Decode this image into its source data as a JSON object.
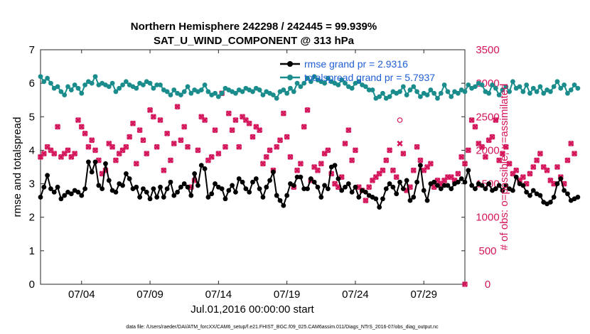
{
  "colors": {
    "rmse": "#000000",
    "spread": "#1a8c8c",
    "obs": "#d4145a",
    "right_axis": "#d4145a",
    "legend_text": "#1f5fd6"
  },
  "chart_data": {
    "type": "line",
    "title_line1": "Northern Hemisphere 242298 / 242445 = 99.939%",
    "title_line2": "SAT_U_WIND_COMPONENT @ 313 hPa",
    "xlabel": "Jul.01,2016 00:00:00 start",
    "ylabel_left": "rmse and totalspread",
    "ylabel_right": "# of obs: o=possible; ×=assimilated",
    "xlim": [
      1,
      32
    ],
    "ylim_left": [
      0,
      7
    ],
    "ylim_right": [
      0,
      3500
    ],
    "xticks": [
      {
        "value": 4,
        "label": "07/04"
      },
      {
        "value": 9,
        "label": "07/09"
      },
      {
        "value": 14,
        "label": "07/14"
      },
      {
        "value": 19,
        "label": "07/19"
      },
      {
        "value": 24,
        "label": "07/24"
      },
      {
        "value": 29,
        "label": "07/29"
      }
    ],
    "yticks_left": [
      "0",
      "1",
      "2",
      "3",
      "4",
      "5",
      "6",
      "7"
    ],
    "yticks_right": [
      "0",
      "500",
      "1000",
      "1500",
      "2000",
      "2500",
      "3000",
      "3500"
    ],
    "legend": {
      "rmse": "rmse grand pr = 2.9316",
      "spread": "totalspread grand pr = 5.7937"
    },
    "footer": "data file: /Users/raeder/DAI/ATM_forcXX/CAM6_setup/f.e21.FHIST_BGC.f09_025.CAM6assim.011/Diags_NTrS_2016-07/obs_diag_output.nc",
    "x_start": 1.0,
    "x_step": 0.25,
    "series": [
      {
        "name": "rmse",
        "axis": "left",
        "values": [
          2.6,
          2.9,
          3.25,
          2.85,
          2.75,
          2.9,
          2.55,
          2.65,
          2.75,
          2.7,
          2.8,
          2.75,
          2.65,
          2.85,
          3.65,
          3.35,
          3.65,
          2.95,
          2.85,
          3.6,
          3.1,
          2.8,
          2.75,
          3.0,
          2.95,
          3.3,
          3.15,
          2.85,
          2.9,
          2.6,
          2.85,
          2.75,
          2.55,
          2.85,
          2.6,
          2.9,
          2.6,
          2.85,
          3.05,
          2.65,
          2.75,
          2.9,
          3.0,
          2.9,
          2.65,
          3.3,
          2.95,
          3.55,
          3.45,
          2.6,
          2.7,
          3.0,
          2.9,
          2.85,
          2.55,
          2.8,
          2.95,
          2.75,
          3.15,
          3.05,
          2.85,
          2.75,
          3.05,
          3.15,
          2.85,
          2.6,
          2.9,
          3.1,
          3.35,
          2.65,
          2.5,
          2.35,
          2.65,
          3.0,
          2.95,
          3.2,
          3.2,
          2.85,
          2.85,
          3.15,
          3.05,
          2.9,
          2.6,
          2.95,
          2.85,
          3.5,
          3.55,
          3.15,
          2.8,
          2.9,
          3.0,
          2.75,
          2.9,
          2.6,
          2.8,
          2.75,
          2.65,
          2.6,
          2.55,
          2.3,
          2.55,
          2.85,
          3.0,
          2.9,
          2.7,
          3.05,
          2.85,
          3.1,
          2.5,
          2.6,
          3.05,
          3.55,
          2.8,
          2.5,
          3.0,
          3.05,
          2.95,
          2.85,
          2.95,
          2.95,
          2.85,
          3.0,
          3.05,
          3.15,
          3.05,
          3.4,
          2.95,
          2.85,
          3.0,
          2.95,
          2.85,
          3.0,
          2.8,
          2.85,
          2.95,
          2.8,
          2.95,
          2.85,
          2.8,
          3.2,
          3.0,
          2.95,
          2.75,
          2.65,
          2.8,
          2.7,
          2.65,
          2.45,
          2.4,
          2.45,
          2.6,
          3.0,
          3.15,
          2.8,
          2.7,
          2.5,
          2.55,
          2.6
        ]
      },
      {
        "name": "totalspread",
        "axis": "left",
        "values": [
          6.2,
          6.05,
          6.15,
          6.0,
          5.85,
          5.9,
          5.75,
          5.65,
          5.9,
          5.8,
          5.95,
          5.85,
          5.7,
          5.95,
          6.05,
          6.0,
          6.2,
          5.95,
          6.0,
          5.95,
          5.9,
          6.0,
          5.75,
          5.85,
          5.95,
          6.05,
          5.95,
          5.9,
          5.85,
          6.0,
          5.95,
          6.05,
          6.0,
          5.85,
          5.95,
          5.95,
          5.8,
          5.75,
          5.65,
          5.8,
          5.7,
          5.65,
          5.75,
          5.9,
          5.7,
          5.8,
          5.75,
          5.8,
          5.95,
          5.75,
          5.65,
          5.7,
          5.6,
          5.7,
          5.85,
          5.8,
          5.75,
          5.7,
          5.8,
          5.75,
          5.85,
          5.8,
          5.75,
          5.85,
          5.8,
          5.65,
          5.75,
          5.7,
          5.65,
          5.55,
          5.75,
          5.8,
          5.7,
          5.85,
          5.75,
          6.0,
          5.9,
          6.0,
          6.15,
          6.05,
          6.2,
          6.1,
          6.05,
          6.0,
          6.15,
          6.05,
          6.0,
          5.95,
          6.1,
          6.0,
          5.9,
          5.85,
          6.0,
          6.05,
          5.95,
          5.9,
          5.8,
          5.8,
          5.55,
          5.6,
          5.7,
          5.55,
          5.6,
          5.75,
          5.7,
          5.75,
          5.9,
          5.65,
          5.8,
          5.9,
          5.75,
          5.6,
          5.7,
          5.65,
          5.8,
          5.7,
          5.55,
          5.7,
          5.95,
          5.75,
          5.6,
          5.75,
          5.7,
          5.8,
          5.75,
          5.95,
          5.85,
          5.9,
          6.0,
          5.95,
          5.75,
          5.7,
          5.95,
          5.85,
          5.65,
          5.8,
          5.9,
          5.75,
          6.05,
          5.85,
          5.9,
          5.75,
          5.95,
          5.7,
          5.85,
          5.75,
          5.9,
          5.7,
          5.8,
          5.75,
          5.9,
          6.05,
          5.85,
          5.95,
          5.7,
          5.8,
          5.95,
          5.85
        ]
      },
      {
        "name": "obs_assimilated",
        "axis": "right",
        "values": [
          1900,
          1950,
          2050,
          2000,
          1950,
          2350,
          1900,
          1950,
          2000,
          1900,
          1950,
          2450,
          2350,
          2250,
          2050,
          2150,
          2000,
          1850,
          1650,
          1700,
          2100,
          2050,
          1850,
          1950,
          2000,
          2050,
          2200,
          2400,
          1800,
          2300,
          2150,
          1950,
          2600,
          2500,
          2050,
          2450,
          1700,
          2250,
          1850,
          2100,
          2650,
          2150,
          2350,
          2050,
          1450,
          1550,
          2000,
          2500,
          2450,
          1850,
          1900,
          2300,
          1950,
          2850,
          2050,
          2550,
          2300,
          2450,
          2050,
          2500,
          2450,
          2400,
          2200,
          2350,
          2300,
          1800,
          1900,
          2000,
          1700,
          2050,
          2150,
          2550,
          2200,
          1900,
          1450,
          1700,
          1800,
          2350,
          2600,
          1550,
          1750,
          1700,
          1800,
          1950,
          2000,
          1650,
          1500,
          1450,
          1600,
          2100,
          2300,
          1850,
          2000,
          1450,
          1400,
          1250,
          1450,
          1550,
          1600,
          1650,
          1700,
          1850,
          2000,
          1700,
          1600,
          2100,
          1950,
          1400,
          1450,
          1700,
          2050,
          1850,
          1700,
          1750,
          1800,
          1450,
          1550,
          1500,
          1550,
          1600,
          1600,
          1550,
          1650,
          1900,
          1800,
          2000,
          2450,
          2350,
          2100,
          2050,
          1900,
          2150,
          2200,
          2450,
          1850,
          1950,
          2050,
          1800,
          1650,
          1700,
          1550,
          1600,
          1500,
          1650,
          1750,
          1850,
          1950,
          1750,
          1700,
          1550,
          1500,
          1750,
          1600,
          1500,
          1850,
          2100,
          1950
        ]
      },
      {
        "name": "obs_possible",
        "axis": "right",
        "values": [
          1900,
          1950,
          2050,
          2000,
          1950,
          2350,
          1900,
          1950,
          2000,
          1900,
          1950,
          2450,
          2350,
          2250,
          2050,
          2150,
          2000,
          1850,
          1650,
          1700,
          2100,
          2050,
          1850,
          1950,
          2000,
          2050,
          2200,
          2400,
          1800,
          2300,
          2150,
          1950,
          2600,
          2500,
          2050,
          2450,
          1700,
          2250,
          1850,
          2100,
          2650,
          2150,
          2350,
          2050,
          1450,
          1550,
          2000,
          2500,
          2450,
          1850,
          1900,
          2300,
          1950,
          2850,
          2050,
          2550,
          2300,
          2450,
          2050,
          2500,
          2450,
          2400,
          2200,
          2350,
          2300,
          1800,
          1900,
          2000,
          1700,
          2050,
          2150,
          2550,
          2200,
          1900,
          1450,
          1700,
          1800,
          2350,
          2600,
          1550,
          1750,
          1700,
          1800,
          1950,
          2000,
          1650,
          1500,
          1450,
          1600,
          2100,
          2300,
          1850,
          2000,
          1450,
          1400,
          1250,
          1450,
          1550,
          1600,
          1650,
          1700,
          1850,
          2000,
          1700,
          1600,
          2450,
          1950,
          1400,
          1450,
          1700,
          2050,
          1850,
          1700,
          1750,
          1800,
          1450,
          1550,
          1500,
          1550,
          1600,
          1600,
          1550,
          1650,
          1900,
          1800,
          2000,
          2450,
          2350,
          2100,
          2050,
          1900,
          2150,
          2200,
          2450,
          1850,
          1950,
          2050,
          1800,
          1650,
          1700,
          1550,
          1600,
          1500,
          1650,
          1750,
          1850,
          1950,
          1750,
          1700,
          1550,
          1500,
          1750,
          1600,
          1500,
          1850,
          2100,
          1950
        ]
      }
    ],
    "extra_points": [
      {
        "name": "obs_zero",
        "x": 32,
        "value": 0,
        "axis": "right"
      }
    ]
  }
}
